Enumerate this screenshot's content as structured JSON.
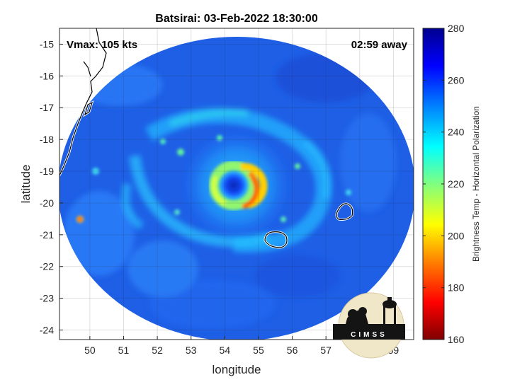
{
  "chart_data": {
    "type": "heatmap",
    "title": "Batsirai: 03-Feb-2022 18:30:00",
    "xlabel": "longitude",
    "ylabel": "latitude",
    "xlim": [
      49.1,
      59.6
    ],
    "ylim": [
      -24.3,
      -14.5
    ],
    "xticks": [
      50,
      51,
      52,
      53,
      54,
      55,
      56,
      57,
      58,
      59
    ],
    "yticks": [
      -15,
      -16,
      -17,
      -18,
      -19,
      -20,
      -21,
      -22,
      -23,
      -24
    ],
    "grid": true,
    "annotations": {
      "vmax": "Vmax: 105 kts",
      "time_away": "02:59 away"
    },
    "colorbar": {
      "label": "Brightness Temp - Horizontal Polarization",
      "range": [
        160,
        280
      ],
      "ticks": [
        160,
        180,
        200,
        220,
        240,
        260,
        280
      ],
      "colormap": [
        "#7f0000",
        "#ff0000",
        "#ff8000",
        "#ffff00",
        "#80ff80",
        "#00ffff",
        "#0080ff",
        "#0000ff",
        "#00008f"
      ]
    },
    "storm_center": {
      "lon": 54.3,
      "lat": -19.4
    },
    "eye_temperature": 268,
    "eyewall_min_temperature": 195,
    "swath_background_temperature": 265,
    "logo_text": "CIMSS"
  }
}
